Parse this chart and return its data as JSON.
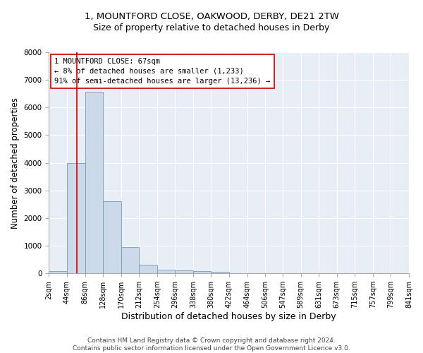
{
  "title_line1": "1, MOUNTFORD CLOSE, OAKWOOD, DERBY, DE21 2TW",
  "title_line2": "Size of property relative to detached houses in Derby",
  "xlabel": "Distribution of detached houses by size in Derby",
  "ylabel": "Number of detached properties",
  "bar_color": "#ccd9e8",
  "bar_edge_color": "#7799bb",
  "bins": [
    2,
    44,
    86,
    128,
    170,
    212,
    254,
    296,
    338,
    380,
    422,
    464,
    506,
    547,
    589,
    631,
    673,
    715,
    757,
    799,
    841
  ],
  "bar_heights": [
    70,
    3980,
    6560,
    2620,
    950,
    300,
    130,
    100,
    80,
    50,
    0,
    0,
    0,
    0,
    0,
    0,
    0,
    0,
    0,
    0
  ],
  "property_size": 67,
  "vline_color": "#cc0000",
  "annotation_line1": "1 MOUNTFORD CLOSE: 67sqm",
  "annotation_line2": "← 8% of detached houses are smaller (1,233)",
  "annotation_line3": "91% of semi-detached houses are larger (13,236) →",
  "annotation_box_color": "#ffffff",
  "annotation_box_edge": "#cc0000",
  "ylim": [
    0,
    8000
  ],
  "yticks": [
    0,
    1000,
    2000,
    3000,
    4000,
    5000,
    6000,
    7000,
    8000
  ],
  "background_color": "#e8eef5",
  "footer_text": "Contains HM Land Registry data © Crown copyright and database right 2024.\nContains public sector information licensed under the Open Government Licence v3.0.",
  "title_fontsize": 9.5,
  "subtitle_fontsize": 9,
  "xlabel_fontsize": 9,
  "ylabel_fontsize": 8.5,
  "tick_labelsize": 7,
  "annotation_fontsize": 7.5,
  "footer_fontsize": 6.5
}
